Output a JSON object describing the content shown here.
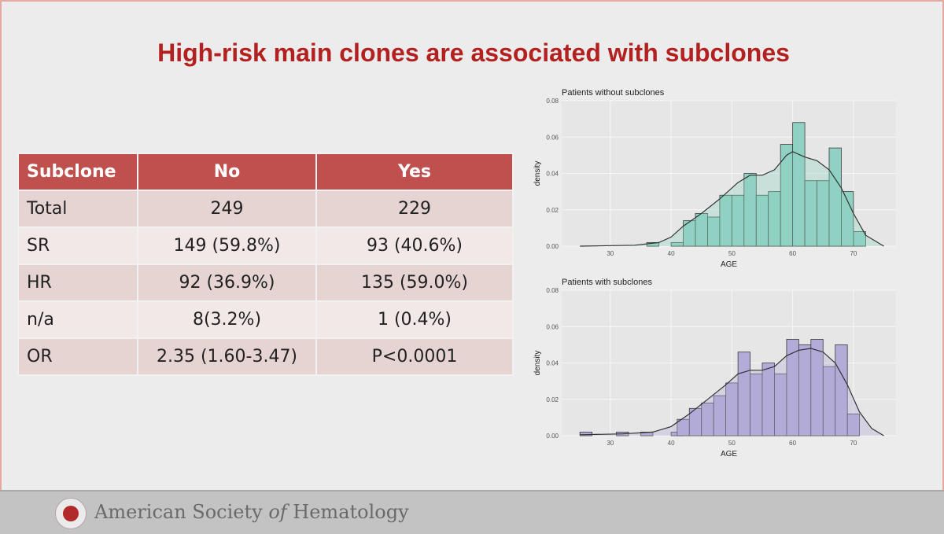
{
  "slide": {
    "title": "High-risk main clones are associated with subclones",
    "footer": {
      "org_prefix": "American Society ",
      "org_italic": "of",
      "org_suffix": " Hematology"
    }
  },
  "table": {
    "headers": [
      "Subclone",
      "No",
      "Yes"
    ],
    "rows": [
      [
        "Total",
        "249",
        "229"
      ],
      [
        "SR",
        "149 (59.8%)",
        "93 (40.6%)"
      ],
      [
        "HR",
        "92 (36.9%)",
        "135 (59.0%)"
      ],
      [
        "n/a",
        "8(3.2%)",
        "1 (0.4%)"
      ],
      [
        "OR",
        "2.35 (1.60-3.47)",
        "P<0.0001"
      ]
    ]
  },
  "colors": {
    "title": "#b2201f",
    "header": "#c0504d",
    "teal": "#8fd1c2",
    "purple": "#b3abd8"
  },
  "chart_data": [
    {
      "type": "bar",
      "title": "Patients without subclones",
      "xlabel": "AGE",
      "ylabel": "density",
      "xlim": [
        22,
        77
      ],
      "ylim": [
        0,
        0.08
      ],
      "xticks": [
        30,
        40,
        50,
        60,
        70
      ],
      "yticks": [
        "0.00",
        "0.02",
        "0.04",
        "0.06",
        "0.08"
      ],
      "bin_width": 2,
      "bins": [
        {
          "x0": 36,
          "v": 0.002
        },
        {
          "x0": 40,
          "v": 0.002
        },
        {
          "x0": 42,
          "v": 0.014
        },
        {
          "x0": 44,
          "v": 0.018
        },
        {
          "x0": 46,
          "v": 0.016
        },
        {
          "x0": 48,
          "v": 0.028
        },
        {
          "x0": 50,
          "v": 0.028
        },
        {
          "x0": 52,
          "v": 0.04
        },
        {
          "x0": 54,
          "v": 0.028
        },
        {
          "x0": 56,
          "v": 0.03
        },
        {
          "x0": 58,
          "v": 0.056
        },
        {
          "x0": 60,
          "v": 0.068
        },
        {
          "x0": 62,
          "v": 0.036
        },
        {
          "x0": 64,
          "v": 0.036
        },
        {
          "x0": 66,
          "v": 0.054
        },
        {
          "x0": 68,
          "v": 0.03
        },
        {
          "x0": 70,
          "v": 0.008
        }
      ],
      "density": [
        [
          25,
          0
        ],
        [
          34,
          0.0005
        ],
        [
          38,
          0.002
        ],
        [
          40,
          0.005
        ],
        [
          42,
          0.011
        ],
        [
          45,
          0.018
        ],
        [
          48,
          0.026
        ],
        [
          51,
          0.035
        ],
        [
          53,
          0.039
        ],
        [
          55,
          0.039
        ],
        [
          57,
          0.042
        ],
        [
          59,
          0.05
        ],
        [
          60,
          0.052
        ],
        [
          62,
          0.049
        ],
        [
          64,
          0.047
        ],
        [
          66,
          0.042
        ],
        [
          68,
          0.032
        ],
        [
          70,
          0.018
        ],
        [
          72,
          0.006
        ],
        [
          75,
          0
        ]
      ],
      "fill": "#8fd1c2"
    },
    {
      "type": "bar",
      "title": "Patients with subclones",
      "xlabel": "AGE",
      "ylabel": "density",
      "xlim": [
        22,
        77
      ],
      "ylim": [
        0,
        0.08
      ],
      "xticks": [
        30,
        40,
        50,
        60,
        70
      ],
      "yticks": [
        "0.00",
        "0.02",
        "0.04",
        "0.06",
        "0.08"
      ],
      "bin_width": 2,
      "bins": [
        {
          "x0": 25,
          "v": 0.002
        },
        {
          "x0": 31,
          "v": 0.002
        },
        {
          "x0": 35,
          "v": 0.002
        },
        {
          "x0": 40,
          "v": 0.002
        },
        {
          "x0": 41,
          "v": 0.009
        },
        {
          "x0": 43,
          "v": 0.015
        },
        {
          "x0": 45,
          "v": 0.018
        },
        {
          "x0": 47,
          "v": 0.022
        },
        {
          "x0": 49,
          "v": 0.029
        },
        {
          "x0": 51,
          "v": 0.046
        },
        {
          "x0": 53,
          "v": 0.034
        },
        {
          "x0": 55,
          "v": 0.04
        },
        {
          "x0": 57,
          "v": 0.034
        },
        {
          "x0": 59,
          "v": 0.053
        },
        {
          "x0": 61,
          "v": 0.05
        },
        {
          "x0": 63,
          "v": 0.053
        },
        {
          "x0": 65,
          "v": 0.038
        },
        {
          "x0": 67,
          "v": 0.05
        },
        {
          "x0": 69,
          "v": 0.012
        }
      ],
      "density": [
        [
          25,
          0.0005
        ],
        [
          32,
          0.001
        ],
        [
          37,
          0.002
        ],
        [
          40,
          0.005
        ],
        [
          43,
          0.012
        ],
        [
          46,
          0.02
        ],
        [
          49,
          0.028
        ],
        [
          51,
          0.034
        ],
        [
          53,
          0.036
        ],
        [
          55,
          0.036
        ],
        [
          57,
          0.038
        ],
        [
          59,
          0.044
        ],
        [
          61,
          0.047
        ],
        [
          63,
          0.048
        ],
        [
          65,
          0.046
        ],
        [
          67,
          0.04
        ],
        [
          69,
          0.028
        ],
        [
          71,
          0.013
        ],
        [
          73,
          0.004
        ],
        [
          75,
          0
        ]
      ],
      "fill": "#b3abd8"
    }
  ]
}
